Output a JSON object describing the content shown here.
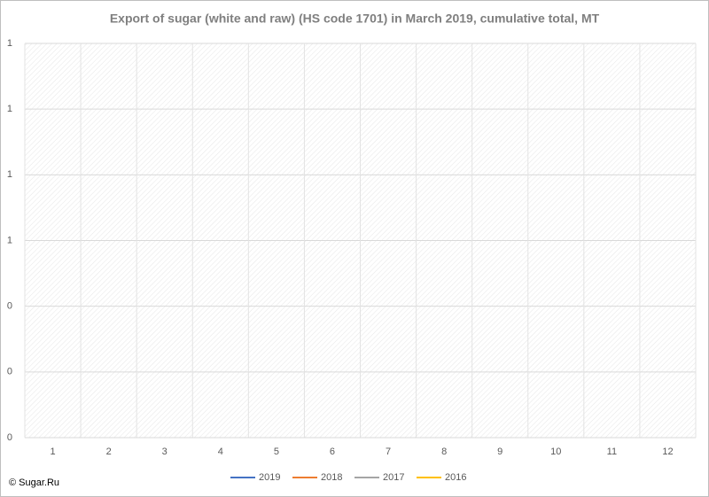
{
  "chart_data": {
    "type": "line",
    "title": "Export of sugar (white and raw) (HS code 1701) in March 2019, cumulative total, MT",
    "categories": [
      "1",
      "2",
      "3",
      "4",
      "5",
      "6",
      "7",
      "8",
      "9",
      "10",
      "11",
      "12"
    ],
    "series": [
      {
        "name": "2019",
        "color": "#4472c4",
        "values": [
          null,
          null,
          null,
          null,
          null,
          null,
          null,
          null,
          null,
          null,
          null,
          null
        ]
      },
      {
        "name": "2018",
        "color": "#ed7d31",
        "values": [
          null,
          null,
          null,
          null,
          null,
          null,
          null,
          null,
          null,
          null,
          null,
          null
        ]
      },
      {
        "name": "2017",
        "color": "#a5a5a5",
        "values": [
          null,
          null,
          null,
          null,
          null,
          null,
          null,
          null,
          null,
          null,
          null,
          null
        ]
      },
      {
        "name": "2016",
        "color": "#ffc000",
        "values": [
          null,
          null,
          null,
          null,
          null,
          null,
          null,
          null,
          null,
          null,
          null,
          null
        ]
      }
    ],
    "ylim": [
      0,
      1.2
    ],
    "yticks": [
      0,
      {
        "value": 0.2,
        "label": "0"
      },
      {
        "value": 0.4,
        "label": "0"
      },
      {
        "value": 0.6,
        "label": "1"
      },
      {
        "value": 0.8,
        "label": "1"
      },
      1,
      {
        "value": 1.2,
        "label": "1"
      }
    ],
    "grid": true,
    "legend": "bottom",
    "annotations": [
      "© Sugar.Ru"
    ]
  }
}
